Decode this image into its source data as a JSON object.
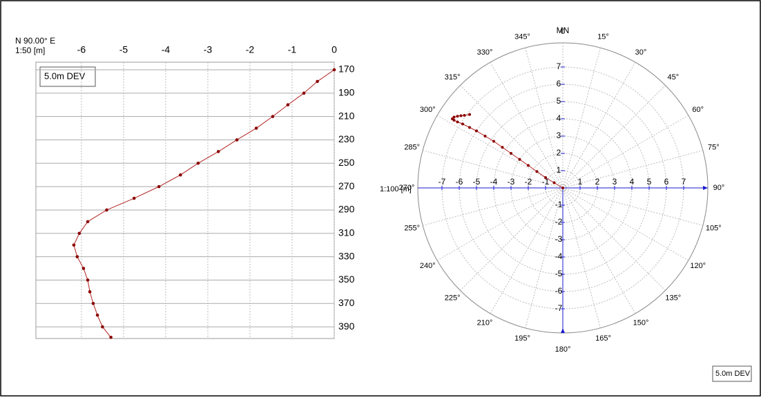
{
  "chart_data": [
    {
      "type": "line",
      "header": "N 90.00° E",
      "scale_label": "1:50 [m]",
      "y_inverted": true,
      "grid": true,
      "xlim": [
        -7.08,
        0
      ],
      "xticks": [
        -6,
        -5,
        -4,
        -3,
        -2,
        -1,
        0
      ],
      "ylim": [
        163.5,
        400
      ],
      "yticks": [
        170,
        190,
        210,
        230,
        250,
        270,
        290,
        310,
        330,
        350,
        370,
        390
      ],
      "series": [
        {
          "name": "5.0m DEV",
          "color": "#b22222",
          "x": [
            0,
            -0.4,
            -0.72,
            -1.1,
            -1.46,
            -1.85,
            -2.31,
            -2.75,
            -3.23,
            -3.65,
            -4.16,
            -4.75,
            -5.4,
            -5.85,
            -6.05,
            -6.18,
            -6.1,
            -5.95,
            -5.85,
            -5.8,
            -5.72,
            -5.62,
            -5.5,
            -5.3
          ],
          "y": [
            170,
            180,
            190,
            200,
            210,
            220,
            230,
            240,
            250,
            260,
            270,
            280,
            290,
            300,
            310,
            320,
            330,
            340,
            350,
            360,
            370,
            380,
            390,
            399
          ]
        }
      ]
    },
    {
      "type": "polar",
      "north_label": "MN",
      "scale_label": "1:100 [m]",
      "rlim": [
        0,
        8.4
      ],
      "xticks": [
        -7,
        -6,
        -5,
        -4,
        -3,
        -2,
        -1,
        1,
        2,
        3,
        4,
        5,
        6,
        7
      ],
      "yticks": [
        7,
        6,
        5,
        4,
        3,
        2,
        1,
        -1,
        -2,
        -3,
        -4,
        -5,
        -6,
        -7
      ],
      "angle_ticks": [
        {
          "value": 0,
          "label": "0"
        },
        {
          "value": 15,
          "label": "15°"
        },
        {
          "value": 30,
          "label": "30°"
        },
        {
          "value": 45,
          "label": "45°"
        },
        {
          "value": 60,
          "label": "60°"
        },
        {
          "value": 75,
          "label": "75°"
        },
        {
          "value": 90,
          "label": "90°"
        },
        {
          "value": 105,
          "label": "105°"
        },
        {
          "value": 120,
          "label": "120°"
        },
        {
          "value": 135,
          "label": "135°"
        },
        {
          "value": 150,
          "label": "150°"
        },
        {
          "value": 165,
          "label": "165°"
        },
        {
          "value": 180,
          "label": "180°"
        },
        {
          "value": 195,
          "label": "195°"
        },
        {
          "value": 210,
          "label": "210°"
        },
        {
          "value": 225,
          "label": "225°"
        },
        {
          "value": 240,
          "label": "240°"
        },
        {
          "value": 255,
          "label": "255°"
        },
        {
          "value": 270,
          "label": "270°"
        },
        {
          "value": 285,
          "label": "285°"
        },
        {
          "value": 300,
          "label": "300°"
        },
        {
          "value": 315,
          "label": "315°"
        },
        {
          "value": 330,
          "label": "330°"
        },
        {
          "value": 345,
          "label": "345°"
        }
      ],
      "series": [
        {
          "name": "5.0m DEV",
          "color": "#b22222",
          "x": [
            0,
            -0.5,
            -1,
            -1.5,
            -2,
            -2.5,
            -3,
            -3.5,
            -4,
            -4.5,
            -5,
            -5.4,
            -5.8,
            -6.1,
            -6.3,
            -6.4,
            -6.3,
            -6.1,
            -5.9,
            -5.7,
            -5.4
          ],
          "y": [
            0,
            0.3,
            0.6,
            0.95,
            1.3,
            1.65,
            2.0,
            2.35,
            2.7,
            3.0,
            3.3,
            3.5,
            3.7,
            3.82,
            3.92,
            4.0,
            4.1,
            4.15,
            4.18,
            4.2,
            4.25
          ]
        }
      ]
    }
  ]
}
